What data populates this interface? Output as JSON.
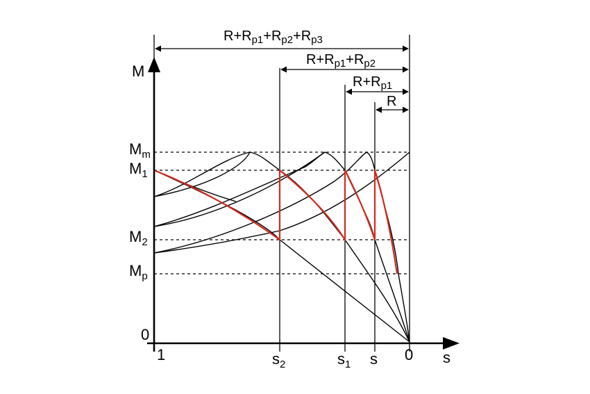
{
  "axes": {
    "y_label": "M",
    "x_label": "s",
    "origin_label": "0",
    "x_start_label": "1",
    "x_end_label": "0"
  },
  "y_levels": [
    {
      "id": "Mm",
      "main": "M",
      "sub": "m"
    },
    {
      "id": "M1",
      "main": "M",
      "sub": "1"
    },
    {
      "id": "M2",
      "main": "M",
      "sub": "2"
    },
    {
      "id": "Mp",
      "main": "M",
      "sub": "p"
    }
  ],
  "x_marks": [
    {
      "id": "s2",
      "main": "s",
      "sub": "2"
    },
    {
      "id": "s1",
      "main": "s",
      "sub": "1"
    },
    {
      "id": "s",
      "main": "s",
      "sub": ""
    }
  ],
  "resistance_labels": [
    {
      "id": "r3",
      "parts": [
        [
          "R+R",
          ""
        ],
        [
          "p1",
          "sub"
        ],
        [
          "+R",
          ""
        ],
        [
          "p2",
          "sub"
        ],
        [
          "+R",
          ""
        ],
        [
          "p3",
          "sub"
        ]
      ]
    },
    {
      "id": "r2",
      "parts": [
        [
          "R+R",
          ""
        ],
        [
          "p1",
          "sub"
        ],
        [
          "+R",
          ""
        ],
        [
          "p2",
          "sub"
        ]
      ]
    },
    {
      "id": "r1",
      "parts": [
        [
          "R+R",
          ""
        ],
        [
          "p1",
          "sub"
        ]
      ]
    },
    {
      "id": "r0",
      "parts": [
        [
          "R",
          ""
        ]
      ]
    }
  ],
  "colors": {
    "characteristic": "#000000",
    "starting_path": "#d42a1c"
  }
}
